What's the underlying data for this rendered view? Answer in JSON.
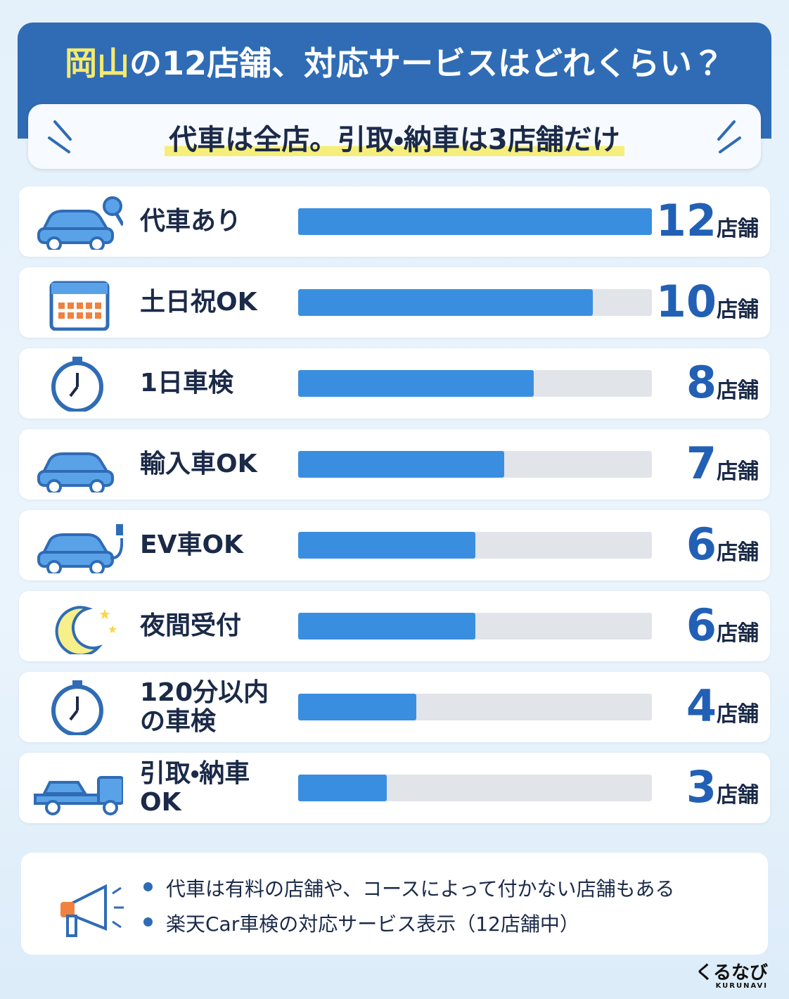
{
  "chart_data": {
    "type": "bar",
    "orientation": "horizontal",
    "title": [
      "岡山",
      "の12店舗、対応サービスはどれくらい？"
    ],
    "subtitle": "代車は全店。引取・納車は3店舗だけ",
    "categories": [
      "代車あり",
      "土日祝OK",
      "1日車検",
      "輸入車OK",
      "EV車OK",
      "夜間受付",
      "120分以内の車検",
      "引取・納車OK"
    ],
    "values": [
      12,
      10,
      8,
      7,
      6,
      6,
      4,
      3
    ],
    "unit": "店舗",
    "xlim": [
      0,
      12
    ],
    "color": "#3a8ee0",
    "track_color": "#e1e4e9",
    "notes": [
      "代車は有料の店舗や、コースによって付かない店舗もある",
      "楽天Car車検の対応サービス表示（12店舗中）"
    ],
    "logo": {
      "name": "くるなび",
      "sub": "KURUNAVI"
    }
  }
}
